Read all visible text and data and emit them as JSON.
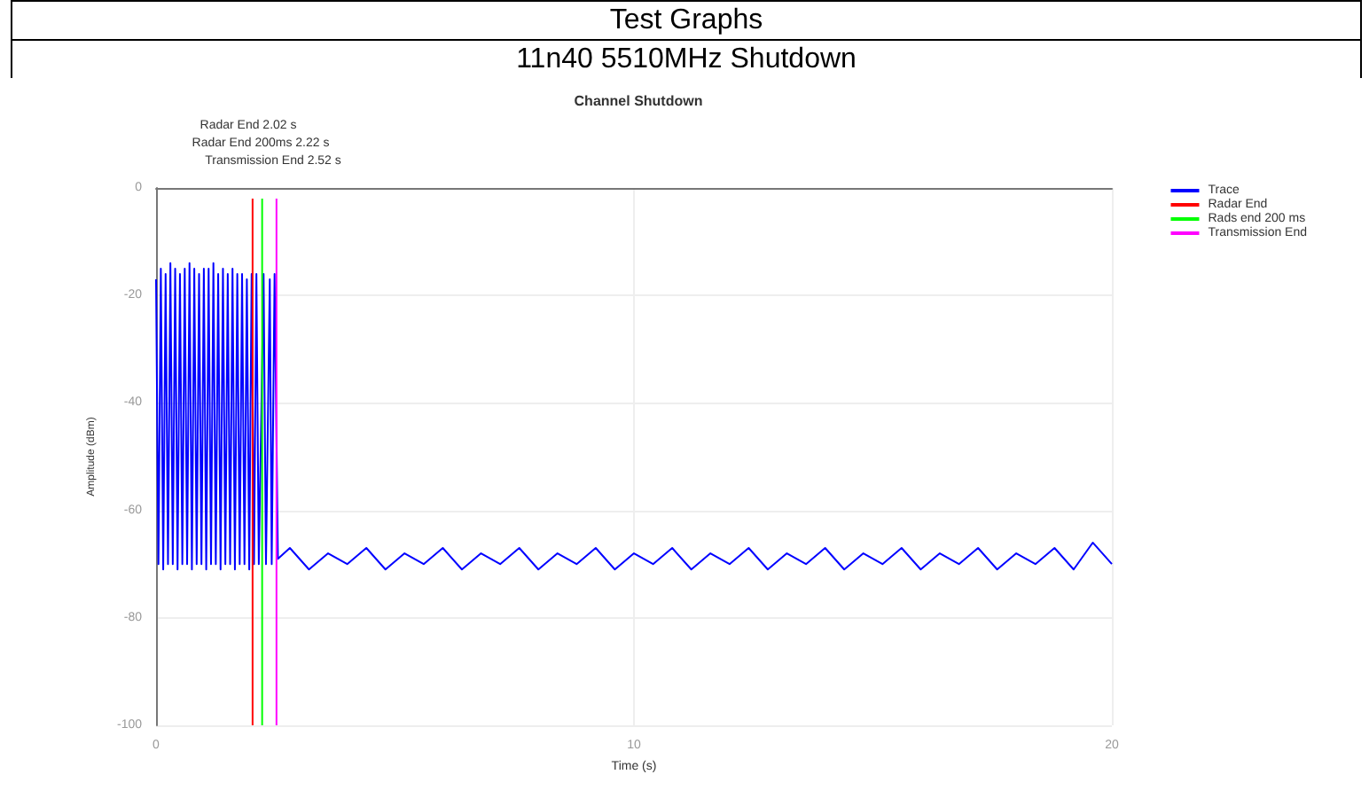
{
  "chart_data": {
    "type": "line",
    "title": "Channel Shutdown",
    "xlabel": "Time (s)",
    "ylabel": "Amplitude (dBm)",
    "annotations": [
      "Test Graphs",
      "11n40 5510MHz Shutdown",
      "Radar End 2.02 s",
      "Radar End 200ms 2.22 s",
      "Transmission End 2.52 s"
    ],
    "xlim": [
      0,
      20
    ],
    "xticks": [
      0,
      10,
      20
    ],
    "ylim": [
      -100,
      0
    ],
    "yticks": [
      -100,
      -80,
      -60,
      -40,
      -20,
      0
    ],
    "grid": true,
    "legend": "top right",
    "marker": "none",
    "line_style": "solid",
    "series": [
      {
        "name": "Trace",
        "color": "#0000ff",
        "x": [
          0,
          0.05,
          0.1,
          0.15,
          0.2,
          0.25,
          0.3,
          0.35,
          0.4,
          0.45,
          0.5,
          0.55,
          0.6,
          0.65,
          0.7,
          0.75,
          0.8,
          0.85,
          0.9,
          0.95,
          1.0,
          1.05,
          1.1,
          1.15,
          1.2,
          1.25,
          1.3,
          1.35,
          1.4,
          1.45,
          1.5,
          1.55,
          1.6,
          1.65,
          1.7,
          1.75,
          1.8,
          1.85,
          1.9,
          1.95,
          2.0,
          2.05,
          2.1,
          2.15,
          2.25,
          2.3,
          2.38,
          2.42,
          2.48,
          2.55,
          2.8,
          3.2,
          3.6,
          4.0,
          4.4,
          4.8,
          5.2,
          5.6,
          6.0,
          6.4,
          6.8,
          7.2,
          7.6,
          8.0,
          8.4,
          8.8,
          9.2,
          9.6,
          10.0,
          10.4,
          10.8,
          11.2,
          11.6,
          12.0,
          12.4,
          12.8,
          13.2,
          13.6,
          14.0,
          14.4,
          14.8,
          15.2,
          15.6,
          16.0,
          16.4,
          16.8,
          17.2,
          17.6,
          18.0,
          18.4,
          18.8,
          19.2,
          19.6,
          20.0
        ],
        "values": [
          -17,
          -70,
          -15,
          -71,
          -16,
          -70,
          -14,
          -70,
          -15,
          -71,
          -16,
          -70,
          -15,
          -70,
          -14,
          -71,
          -15,
          -70,
          -16,
          -70,
          -15,
          -71,
          -15,
          -70,
          -14,
          -70,
          -16,
          -71,
          -15,
          -70,
          -16,
          -70,
          -15,
          -71,
          -16,
          -70,
          -16,
          -70,
          -17,
          -71,
          -16,
          -70,
          -16,
          -70,
          -16,
          -70,
          -17,
          -70,
          -16,
          -69,
          -67,
          -71,
          -68,
          -70,
          -67,
          -71,
          -68,
          -70,
          -67,
          -71,
          -68,
          -70,
          -67,
          -71,
          -68,
          -70,
          -67,
          -71,
          -68,
          -70,
          -67,
          -71,
          -68,
          -70,
          -67,
          -71,
          -68,
          -70,
          -67,
          -71,
          -68,
          -70,
          -67,
          -71,
          -68,
          -70,
          -67,
          -71,
          -68,
          -70,
          -67,
          -71,
          -66,
          -70
        ]
      },
      {
        "name": "Radar End",
        "color": "#ff0000",
        "x": [
          2.02,
          2.02
        ],
        "values": [
          -100,
          -2
        ]
      },
      {
        "name": "Rads end 200 ms",
        "color": "#00ff00",
        "x": [
          2.22,
          2.22
        ],
        "values": [
          -100,
          -2
        ]
      },
      {
        "name": "Transmission End",
        "color": "#ff00ff",
        "x": [
          2.52,
          2.52
        ],
        "values": [
          -100,
          -2
        ]
      }
    ]
  }
}
